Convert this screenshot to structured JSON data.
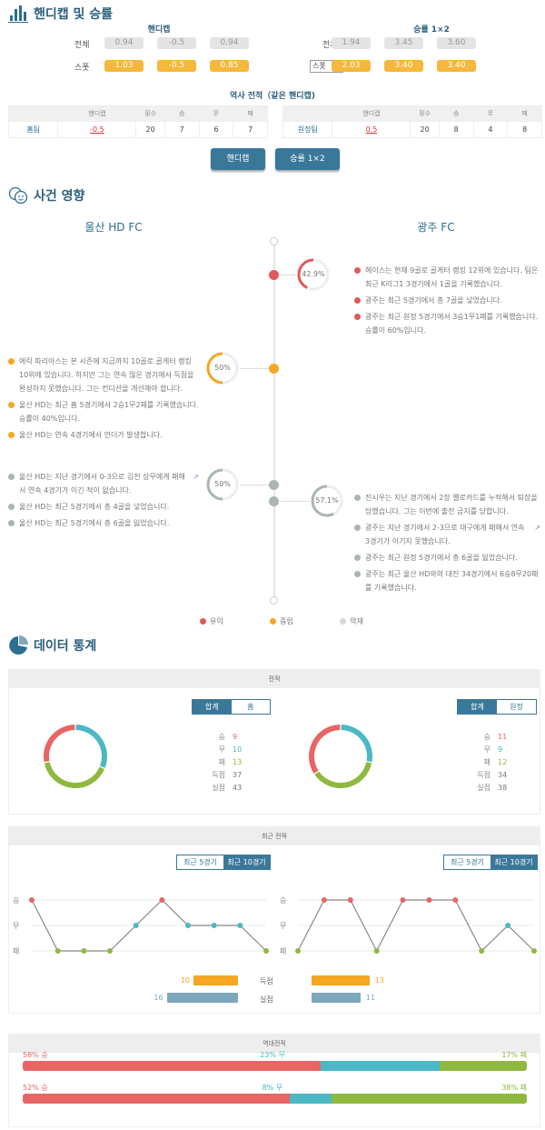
{
  "handicap_section": {
    "title": "핸디캡 및 승률",
    "icon": "bar-chart-icon",
    "handicap": {
      "title": "핸디캡",
      "rows": [
        {
          "label": "전체",
          "values": [
            "0.94",
            "-0.5",
            "0.94"
          ]
        },
        {
          "label": "스폿",
          "values": [
            "1.03",
            "-0.5",
            "0.85"
          ]
        }
      ]
    },
    "winrate": {
      "title": "승률 1×2",
      "rows": [
        {
          "label": "전체",
          "values": [
            "1.94",
            "3.45",
            "3.60"
          ]
        },
        {
          "label": "스폿",
          "values": [
            "2.03",
            "3.40",
            "3.40"
          ]
        }
      ],
      "select_value": "스폿"
    },
    "history": {
      "title": "역사 전적（같은 핸디캡)",
      "columns": [
        "",
        "핸디캡",
        "횟수",
        "승",
        "무",
        "패"
      ],
      "home": [
        "홈팀",
        "-0.5",
        "20",
        "7",
        "6",
        "7"
      ],
      "away": [
        "원정팀",
        "0.5",
        "20",
        "8",
        "4",
        "8"
      ]
    },
    "buttons": [
      "핸디캡",
      "승률 1×2"
    ]
  },
  "impact_section": {
    "title": "사건 영향",
    "icon": "faces-icon",
    "home_team": "울산 HD FC",
    "away_team": "광주 FC",
    "nodes": [
      {
        "side": "away",
        "type": "positive",
        "percent": 42.9,
        "percent_label": "42.9%",
        "notes": [
          {
            "text": "헤이스는 현재 9골로 골게터 랭킹 12위에 있습니다. 팀은 최근 K리그1 3경기에서 1골을 기록했습니다."
          },
          {
            "text": "광주는 최근 5경기에서 총 7골을 넣었습니다."
          },
          {
            "text": "광주는 최근 원정 5경기에서 3승1무1패를 기록했습니다. 승률이 60%입니다."
          }
        ]
      },
      {
        "side": "home",
        "type": "neutral",
        "percent": 50,
        "percent_label": "50%",
        "notes": [
          {
            "text": "에릭 파리아스는 본 시즌에 지금까지 10골로 골게터 랭킹 10위에 있습니다. 하지만 그는 연속 많은 경기에서 득점을 완성하지 못했습니다. 그는 컨디션을 개선해야 합니다."
          },
          {
            "text": "울산 HD는 최근 홈 5경기에서 2승1무2패를 기록했습니다. 승률이 40%입니다."
          },
          {
            "text": "울산 HD는 연속 4경기에서 언더가 발생합니다."
          }
        ]
      },
      {
        "side": "home",
        "type": "negative",
        "percent": 50,
        "percent_label": "50%",
        "notes": [
          {
            "text": "울산 HD는 지난 경기에서 0-3으로 김천 상무에게 패해서 연속 4경기가 이긴 적이 없습니다.",
            "link": true
          },
          {
            "text": "울산 HD는 최근 5경기에서 총 4골을 넣었습니다."
          },
          {
            "text": "울산 HD는 최근 5경기에서 총 6골을 잃었습니다."
          }
        ]
      },
      {
        "side": "away",
        "type": "negative",
        "percent": 57.1,
        "percent_label": "57.1%",
        "notes": [
          {
            "text": "진시우는 지난 경기에서 2장 옐로카드를 누적해서 퇴장을 당했습니다. 그는 이번에 출전 금지를 당합니다."
          },
          {
            "text": "광주는 지난 경기에서 2-3으로 대구에게 패해서 연속 3경기가 이기지 못했습니다.",
            "link": true
          },
          {
            "text": "광주는 최근 원정 5경기에서 총 6골을 잃었습니다."
          },
          {
            "text": "광주는 최근 울산 HD와의 대진 34경기에서 6승8무20패를 기록했습니다."
          }
        ]
      }
    ],
    "legend": [
      {
        "label": "유익",
        "color": "#e05a5a"
      },
      {
        "label": "중립",
        "color": "#f5a623"
      },
      {
        "label": "악재",
        "color": "#d8d8d8"
      }
    ]
  },
  "stats_section": {
    "title": "데이터 통계",
    "icon": "pie-chart-icon",
    "record": {
      "title": "전적",
      "home": {
        "tabs": [
          "합계",
          "홈"
        ],
        "labels": [
          "승",
          "무",
          "패",
          "득점",
          "실점"
        ],
        "values": [
          "9",
          "10",
          "13",
          "37",
          "43"
        ]
      },
      "away": {
        "tabs": [
          "합계",
          "원정"
        ],
        "labels": [
          "승",
          "무",
          "패",
          "득점",
          "실점"
        ],
        "values": [
          "11",
          "9",
          "12",
          "34",
          "38"
        ]
      }
    },
    "recent": {
      "title": "최근 전적",
      "tabs": [
        "최근 5경기",
        "최근 10경기"
      ],
      "axis": [
        "승",
        "무",
        "패"
      ],
      "home_form": [
        "W",
        "L",
        "L",
        "L",
        "D",
        "W",
        "D",
        "D",
        "D",
        "L"
      ],
      "away_form": [
        "L",
        "W",
        "W",
        "L",
        "W",
        "W",
        "W",
        "L",
        "D",
        "L"
      ],
      "goals_label": "득점",
      "conceded_label": "실점",
      "home_goals": "10",
      "home_conceded": "16",
      "away_goals": "13",
      "away_conceded": "11"
    },
    "h2h": {
      "title": "역대전적",
      "rows": [
        {
          "win": "58% 승",
          "draw": "23% 무",
          "loss": "17% 패",
          "w": 58,
          "d": 23,
          "l": 17
        },
        {
          "win": "52% 승",
          "draw": "8% 무",
          "loss": "38% 패",
          "w": 52,
          "d": 8,
          "l": 38
        }
      ]
    }
  },
  "colors": {
    "win": "#e86565",
    "draw": "#4bb8c4",
    "loss": "#8fb93e",
    "accent": "#3a7899",
    "orange": "#f5a623"
  }
}
